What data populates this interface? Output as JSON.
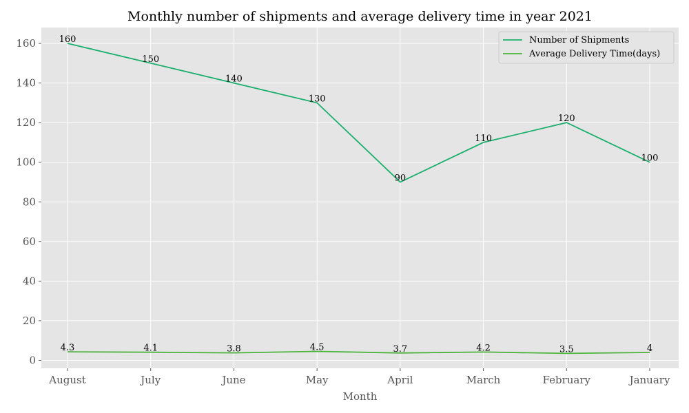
{
  "chart_data": {
    "type": "line",
    "title": "Monthly number of shipments and average delivery time in year 2021",
    "xlabel": "Month",
    "ylabel": "",
    "categories": [
      "August",
      "July",
      "June",
      "May",
      "April",
      "March",
      "February",
      "January"
    ],
    "ylim": [
      -4,
      168
    ],
    "yticks": [
      0,
      20,
      40,
      60,
      80,
      100,
      120,
      140,
      160
    ],
    "ytick_labels": [
      "0",
      "20",
      "40",
      "60",
      "80",
      "100",
      "120",
      "140",
      "160"
    ],
    "grid": true,
    "legend_position": "top-right",
    "background_color": "#e5e5e5",
    "series": [
      {
        "name": "Number of Shipments",
        "color": "#1aaf6c",
        "values": [
          160,
          150,
          140,
          130,
          90,
          110,
          120,
          100
        ],
        "value_labels": [
          "160",
          "150",
          "140",
          "130",
          "90",
          "110",
          "120",
          "100"
        ]
      },
      {
        "name": "Average Delivery Time(days)",
        "color": "#4db33d",
        "values": [
          4.3,
          4.1,
          3.8,
          4.5,
          3.7,
          4.2,
          3.5,
          4
        ],
        "value_labels": [
          "4.3",
          "4.1",
          "3.8",
          "4.5",
          "3.7",
          "4.2",
          "3.5",
          "4"
        ]
      }
    ]
  }
}
